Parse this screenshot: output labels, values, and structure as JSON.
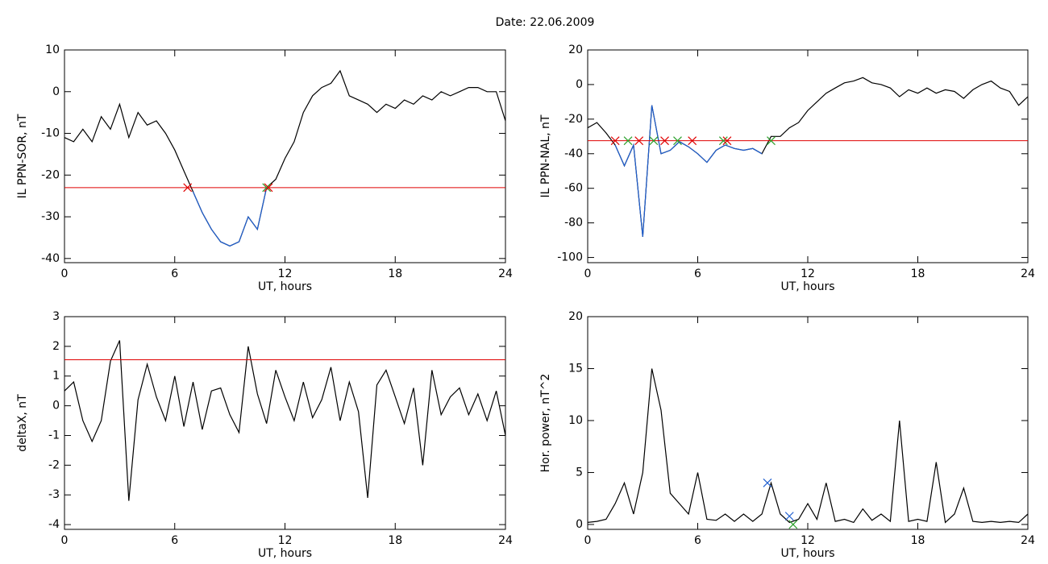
{
  "title": "Date:  22.06.2009",
  "chart_data": [
    {
      "type": "line",
      "ylabel": "IL PPN-SOR, nT",
      "xlabel": "UT, hours",
      "xlim": [
        0,
        24
      ],
      "xticks": [
        0,
        6,
        12,
        18,
        24
      ],
      "ylim": [
        -41,
        10
      ],
      "yticks": [
        10,
        0,
        -10,
        -20,
        -30,
        -40
      ],
      "x": [
        0,
        0.5,
        1,
        1.5,
        2,
        2.5,
        3,
        3.5,
        4,
        4.5,
        5,
        5.5,
        6,
        6.5,
        7,
        7.5,
        8,
        8.5,
        9,
        9.5,
        10,
        10.5,
        11,
        11.5,
        12,
        12.5,
        13,
        13.5,
        14,
        14.5,
        15,
        15.5,
        16,
        16.5,
        17,
        17.5,
        18,
        18.5,
        19,
        19.5,
        20,
        20.5,
        21,
        21.5,
        22,
        22.5,
        23,
        23.5,
        24
      ],
      "series": [
        {
          "color": "#000000",
          "values": [
            -11,
            -12,
            -9,
            -12,
            -6,
            -9,
            -3,
            -11,
            -5,
            -8,
            -7,
            -10,
            -14,
            -19,
            -24,
            -29,
            -33,
            -36,
            -37,
            -36,
            -30,
            -33,
            -23,
            -21,
            -16,
            -12,
            -5,
            -1,
            1,
            2,
            5,
            -1,
            -2,
            -3,
            -5,
            -3,
            -4,
            -2,
            -3,
            -1,
            -2,
            0,
            -1,
            0,
            1,
            1,
            0,
            0,
            -7
          ]
        },
        {
          "color": "#1f5fd0",
          "values": [
            null,
            null,
            null,
            null,
            null,
            null,
            null,
            null,
            null,
            null,
            null,
            null,
            null,
            null,
            -24,
            -29,
            -33,
            -36,
            -37,
            -36,
            -30,
            -33,
            -23,
            null,
            null,
            null,
            null,
            null,
            null,
            null,
            null,
            null,
            null,
            null,
            null,
            null,
            null,
            null,
            null,
            null,
            null,
            null,
            null,
            null,
            null,
            null,
            null,
            null,
            null
          ]
        }
      ],
      "hlines": [
        {
          "value": -23,
          "color": "#e00000"
        }
      ],
      "markers": [
        {
          "x": 6.7,
          "y": -23,
          "color": "#e00000"
        },
        {
          "x": 11,
          "y": -23,
          "color": "#2ca02c"
        },
        {
          "x": 11.1,
          "y": -23,
          "color": "#e00000"
        }
      ]
    },
    {
      "type": "line",
      "ylabel": "IL PPN-NAL, nT",
      "xlabel": "UT, hours",
      "xlim": [
        0,
        24
      ],
      "xticks": [
        0,
        6,
        12,
        18,
        24
      ],
      "ylim": [
        -103,
        20
      ],
      "yticks": [
        20,
        0,
        -20,
        -40,
        -60,
        -80,
        -100
      ],
      "x": [
        0,
        0.5,
        1,
        1.5,
        2,
        2.5,
        3,
        3.5,
        4,
        4.5,
        5,
        5.5,
        6,
        6.5,
        7,
        7.5,
        8,
        8.5,
        9,
        9.5,
        10,
        10.5,
        11,
        11.5,
        12,
        12.5,
        13,
        13.5,
        14,
        14.5,
        15,
        15.5,
        16,
        16.5,
        17,
        17.5,
        18,
        18.5,
        19,
        19.5,
        20,
        20.5,
        21,
        21.5,
        22,
        22.5,
        23,
        23.5,
        24
      ],
      "series": [
        {
          "color": "#000000",
          "values": [
            -25,
            -22,
            -28,
            -35,
            -47,
            -35,
            -88,
            -12,
            -40,
            -38,
            -33,
            -36,
            -40,
            -45,
            -38,
            -35,
            -37,
            -38,
            -37,
            -40,
            -30,
            -30,
            -25,
            -22,
            -15,
            -10,
            -5,
            -2,
            1,
            2,
            4,
            1,
            0,
            -2,
            -7,
            -3,
            -5,
            -2,
            -5,
            -3,
            -4,
            -8,
            -3,
            0,
            2,
            -2,
            -4,
            -12,
            -7
          ]
        },
        {
          "color": "#1f5fd0",
          "values": [
            null,
            null,
            null,
            -35,
            -47,
            -35,
            -88,
            -12,
            -40,
            -38,
            -33,
            -36,
            -40,
            -45,
            -38,
            -35,
            -37,
            -38,
            -37,
            -40,
            null,
            null,
            null,
            null,
            null,
            null,
            null,
            null,
            null,
            null,
            null,
            null,
            null,
            null,
            null,
            null,
            null,
            null,
            null,
            null,
            null,
            null,
            null,
            null,
            null,
            null,
            null,
            null,
            null
          ]
        }
      ],
      "hlines": [
        {
          "value": -32.5,
          "color": "#e00000"
        }
      ],
      "markers": [
        {
          "x": 1.5,
          "y": -32.5,
          "color": "#e00000"
        },
        {
          "x": 2.2,
          "y": -32.5,
          "color": "#2ca02c"
        },
        {
          "x": 2.8,
          "y": -32.5,
          "color": "#e00000"
        },
        {
          "x": 3.6,
          "y": -32.5,
          "color": "#2ca02c"
        },
        {
          "x": 4.2,
          "y": -32.5,
          "color": "#e00000"
        },
        {
          "x": 4.9,
          "y": -32.5,
          "color": "#2ca02c"
        },
        {
          "x": 5.7,
          "y": -32.5,
          "color": "#e00000"
        },
        {
          "x": 7.4,
          "y": -32.5,
          "color": "#2ca02c"
        },
        {
          "x": 7.6,
          "y": -32.5,
          "color": "#e00000"
        },
        {
          "x": 10,
          "y": -32.5,
          "color": "#2ca02c"
        }
      ]
    },
    {
      "type": "line",
      "ylabel": "deltaX, nT",
      "xlabel": "UT, hours",
      "xlim": [
        0,
        24
      ],
      "xticks": [
        0,
        6,
        12,
        18,
        24
      ],
      "ylim": [
        -4.16,
        3
      ],
      "yticks": [
        3,
        2,
        1,
        0,
        -1,
        -2,
        -3,
        -4
      ],
      "x": [
        0,
        0.5,
        1,
        1.5,
        2,
        2.5,
        3,
        3.5,
        4,
        4.5,
        5,
        5.5,
        6,
        6.5,
        7,
        7.5,
        8,
        8.5,
        9,
        9.5,
        10,
        10.5,
        11,
        11.5,
        12,
        12.5,
        13,
        13.5,
        14,
        14.5,
        15,
        15.5,
        16,
        16.5,
        17,
        17.5,
        18,
        18.5,
        19,
        19.5,
        20,
        20.5,
        21,
        21.5,
        22,
        22.5,
        23,
        23.5,
        24
      ],
      "series": [
        {
          "color": "#000000",
          "values": [
            0.5,
            0.8,
            -0.5,
            -1.2,
            -0.5,
            1.5,
            2.2,
            -3.2,
            0.2,
            1.4,
            0.3,
            -0.5,
            1,
            -0.7,
            0.8,
            -0.8,
            0.5,
            0.6,
            -0.3,
            -0.9,
            2,
            0.4,
            -0.6,
            1.2,
            0.3,
            -0.5,
            0.8,
            -0.4,
            0.2,
            1.3,
            -0.5,
            0.8,
            -0.2,
            -3.1,
            0.7,
            1.2,
            0.3,
            -0.6,
            0.6,
            -2,
            1.2,
            -0.3,
            0.3,
            0.6,
            -0.3,
            0.4,
            -0.5,
            0.5,
            -1
          ]
        }
      ],
      "hlines": [
        {
          "value": 1.55,
          "color": "#e00000"
        }
      ],
      "markers": []
    },
    {
      "type": "line",
      "ylabel": "Hor. power, nT^2",
      "xlabel": "UT, hours",
      "xlim": [
        0,
        24
      ],
      "xticks": [
        0,
        6,
        12,
        18,
        24
      ],
      "ylim": [
        -0.47,
        20
      ],
      "yticks": [
        20,
        15,
        10,
        5,
        0
      ],
      "x": [
        0,
        0.5,
        1,
        1.5,
        2,
        2.5,
        3,
        3.5,
        4,
        4.5,
        5,
        5.5,
        6,
        6.5,
        7,
        7.5,
        8,
        8.5,
        9,
        9.5,
        10,
        10.5,
        11,
        11.5,
        12,
        12.5,
        13,
        13.5,
        14,
        14.5,
        15,
        15.5,
        16,
        16.5,
        17,
        17.5,
        18,
        18.5,
        19,
        19.5,
        20,
        20.5,
        21,
        21.5,
        22,
        22.5,
        23,
        23.5,
        24
      ],
      "series": [
        {
          "color": "#000000",
          "values": [
            0.2,
            0.3,
            0.5,
            2,
            4,
            1,
            5,
            15,
            11,
            3,
            2,
            1,
            5,
            0.5,
            0.4,
            1,
            0.3,
            1,
            0.3,
            1,
            4,
            1,
            0.2,
            0.5,
            2,
            0.5,
            4,
            0.3,
            0.5,
            0.2,
            1.5,
            0.4,
            1,
            0.3,
            10,
            0.3,
            0.5,
            0.3,
            6,
            0.2,
            1,
            3.5,
            0.3,
            0.2,
            0.3,
            0.2,
            0.3,
            0.2,
            1
          ]
        }
      ],
      "hlines": [],
      "markers": [
        {
          "x": 9.8,
          "y": 4,
          "color": "#1f5fd0"
        },
        {
          "x": 11,
          "y": 0.8,
          "color": "#1f5fd0"
        },
        {
          "x": 11.2,
          "y": 0,
          "color": "#2ca02c"
        }
      ]
    }
  ]
}
